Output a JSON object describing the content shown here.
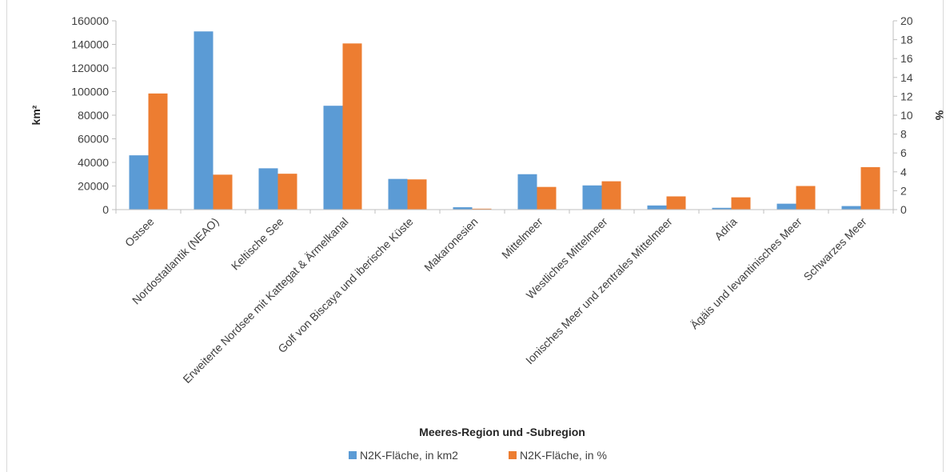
{
  "chart_data": {
    "type": "bar",
    "categories": [
      "Ostsee",
      "Nordostatlantik (NEAO)",
      "Keltische See",
      "Erweiterte Nordsee mit Kattegat & Ärmelkanal",
      "Golf von Biscaya und iberische Küste",
      "Makaronesien",
      "Mittelmeer",
      "Westliches Mittelmeer",
      "Ionisches Meer und zentrales Mittelmeer",
      "Adria",
      "Ägäis und levantinisches Meer",
      "Schwarzes Meer"
    ],
    "series": [
      {
        "name": "N2K-Fläche, in km2",
        "axis": "left",
        "color": "#5b9bd5",
        "values": [
          46000,
          151000,
          35000,
          88000,
          26000,
          2000,
          30000,
          20500,
          3500,
          1500,
          5000,
          3000
        ]
      },
      {
        "name": "N2K-Fläche, in %",
        "axis": "right",
        "color": "#ed7d31",
        "values": [
          12.3,
          3.7,
          3.8,
          17.6,
          3.2,
          0.1,
          2.4,
          3.0,
          1.4,
          1.3,
          2.5,
          4.5
        ]
      }
    ],
    "xlabel": "Meeres-Region und -Subregion",
    "ylabel": "km²",
    "ylabel_right": "%",
    "ylim": [
      0,
      160000
    ],
    "ylim_right": [
      0,
      20
    ],
    "yticks": [
      "0",
      "20000",
      "40000",
      "60000",
      "80000",
      "100000",
      "120000",
      "140000",
      "160000"
    ],
    "yticks_right": [
      "0",
      "2",
      "4",
      "6",
      "8",
      "10",
      "12",
      "14",
      "16",
      "18",
      "20"
    ],
    "grid": false,
    "legend_position": "bottom"
  }
}
